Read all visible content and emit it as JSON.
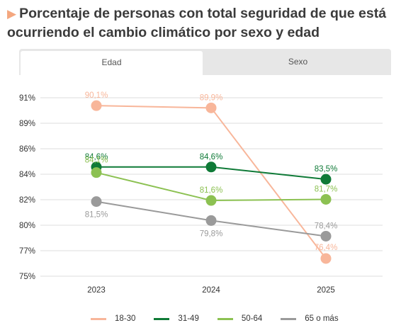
{
  "title": "Porcentaje de personas con total seguridad de que está ocurriendo el cambio climático por sexo y edad",
  "tabs": [
    {
      "label": "Edad",
      "active": true
    },
    {
      "label": "Sexo",
      "active": false
    }
  ],
  "colors": {
    "accent": "#f4a77f",
    "tab_bg": "#e7e7e7",
    "grid": "#dddddd"
  },
  "chart_data": {
    "type": "line",
    "x": [
      "2023",
      "2024",
      "2025"
    ],
    "y_ticks": [
      "91%",
      "89%",
      "86%",
      "84%",
      "82%",
      "80%",
      "77%",
      "75%"
    ],
    "ylim": [
      75,
      91
    ],
    "grid": true,
    "legend_position": "bottom",
    "series": [
      {
        "name": "18-30",
        "color": "#f8b69a",
        "values": [
          90.1,
          89.9,
          76.4
        ],
        "labels": [
          "90,1%",
          "89,9%",
          "76,4%"
        ]
      },
      {
        "name": "31-49",
        "color": "#0f7a37",
        "values": [
          84.6,
          84.6,
          83.5
        ],
        "labels": [
          "84,6%",
          "84,6%",
          "83,5%"
        ]
      },
      {
        "name": "50-64",
        "color": "#8cc152",
        "values": [
          84.1,
          81.6,
          81.7
        ],
        "labels": [
          "84,1%",
          "81,6%",
          "81,7%"
        ]
      },
      {
        "name": "65 o más",
        "color": "#9a9a9a",
        "values": [
          81.5,
          79.8,
          78.4
        ],
        "labels": [
          "81,5%",
          "79,8%",
          "78,4%"
        ]
      }
    ]
  }
}
